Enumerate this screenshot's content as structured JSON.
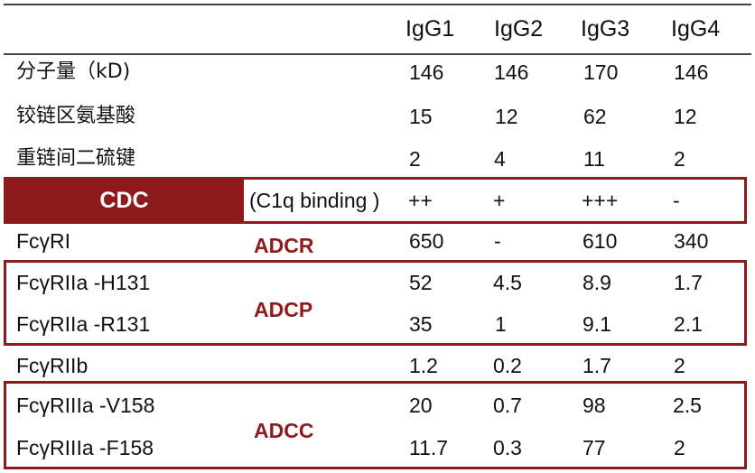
{
  "columns": [
    "IgG1",
    "IgG2",
    "IgG3",
    "IgG4"
  ],
  "rows": [
    {
      "label": "分子量（kD)",
      "values": [
        "146",
        "146",
        "170",
        "146"
      ]
    },
    {
      "label": "铰链区氨基酸",
      "values": [
        "15",
        "12",
        "62",
        "12"
      ]
    },
    {
      "label": "重链间二硫键",
      "values": [
        "2",
        "4",
        "11",
        "2"
      ]
    },
    {
      "label": "(C1q binding )",
      "values": [
        "++",
        "+",
        "+++",
        "-"
      ]
    },
    {
      "label": "FcγRI",
      "values": [
        "650",
        "-",
        "610",
        "340"
      ]
    },
    {
      "label": "FcγRIIa -H131",
      "values": [
        "52",
        "4.5",
        "8.9",
        "1.7"
      ]
    },
    {
      "label": "FcγRIIa -R131",
      "values": [
        "35",
        "1",
        "9.1",
        "2.1"
      ]
    },
    {
      "label": "FcγRIIb",
      "values": [
        "1.2",
        "0.2",
        "1.7",
        "2"
      ]
    },
    {
      "label": "FcγRIIIa -V158",
      "values": [
        "20",
        "0.7",
        "98",
        "2.5"
      ]
    },
    {
      "label": "FcγRIIIa -F158",
      "values": [
        "11.7",
        "0.3",
        "77",
        "2"
      ]
    }
  ],
  "mechanisms": {
    "cdc": "CDC",
    "adcr": "ADCR",
    "adcp": "ADCP",
    "adcc": "ADCC"
  },
  "colors": {
    "accent": "#8e1b1b",
    "rule": "#444444",
    "text": "#111111"
  }
}
